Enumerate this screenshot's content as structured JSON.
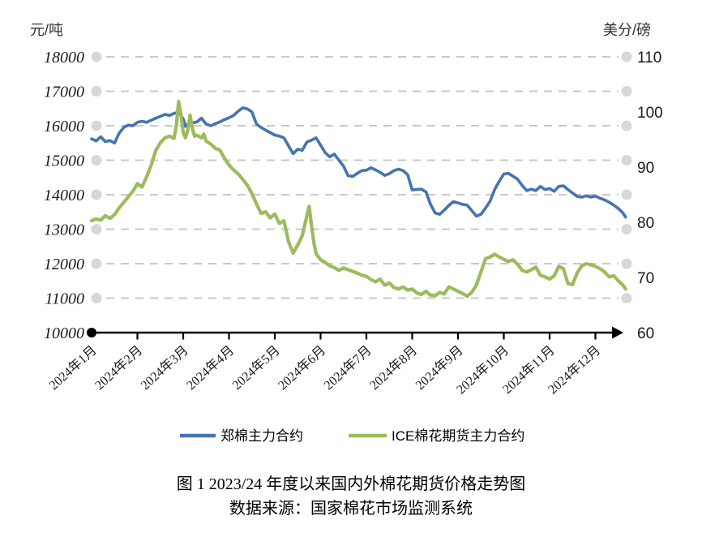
{
  "caption": {
    "line1": "图 1  2023/24 年度以来国内外棉花期货价格走势图",
    "line2": "数据来源：国家棉花市场监测系统"
  },
  "chart_data": {
    "type": "line",
    "title": "图 1 2023/24 年度以来国内外棉花期货价格走势图",
    "source": "数据来源：国家棉花市场监测系统",
    "grid": "dashed-horizontal",
    "legend_position": "bottom",
    "colors": {
      "grid": "#c9c9c9",
      "marker": "#d8d8d8",
      "axis": "#000000"
    },
    "left_axis": {
      "title": "元/吨",
      "min": 10000,
      "max": 18000,
      "tick_step": 1000,
      "tick_labels": [
        18000,
        17000,
        16000,
        15000,
        14000,
        13000,
        12000,
        11000,
        10000
      ]
    },
    "right_axis": {
      "title": "美分/磅",
      "min": 60,
      "max": 110,
      "tick_step": 10,
      "tick_labels": [
        110,
        100,
        90,
        80,
        70,
        60
      ]
    },
    "x_labels": [
      "2024年1月",
      "2024年2月",
      "2024年3月",
      "2024年4月",
      "2024年5月",
      "2024年6月",
      "2024年7月",
      "2024年8月",
      "2024年9月",
      "2024年10月",
      "2024年11月",
      "2024年12月"
    ],
    "series": [
      {
        "name": "郑棉主力合约",
        "axis": "left",
        "unit": "元/吨",
        "color": "#4574b0",
        "points": [
          [
            1.0,
            15620
          ],
          [
            1.1,
            15560
          ],
          [
            1.2,
            15680
          ],
          [
            1.3,
            15540
          ],
          [
            1.4,
            15570
          ],
          [
            1.5,
            15500
          ],
          [
            1.6,
            15780
          ],
          [
            1.7,
            15950
          ],
          [
            1.8,
            16020
          ],
          [
            1.9,
            16000
          ],
          [
            2.0,
            16100
          ],
          [
            2.1,
            16130
          ],
          [
            2.2,
            16100
          ],
          [
            2.3,
            16160
          ],
          [
            2.4,
            16220
          ],
          [
            2.5,
            16270
          ],
          [
            2.6,
            16330
          ],
          [
            2.7,
            16300
          ],
          [
            2.8,
            16360
          ],
          [
            2.9,
            16390
          ],
          [
            3.0,
            16200
          ],
          [
            3.05,
            15980
          ],
          [
            3.1,
            16050
          ],
          [
            3.2,
            16080
          ],
          [
            3.3,
            16110
          ],
          [
            3.4,
            16220
          ],
          [
            3.5,
            16050
          ],
          [
            3.6,
            16000
          ],
          [
            3.7,
            16060
          ],
          [
            3.8,
            16110
          ],
          [
            3.9,
            16180
          ],
          [
            4.0,
            16230
          ],
          [
            4.1,
            16300
          ],
          [
            4.2,
            16420
          ],
          [
            4.3,
            16520
          ],
          [
            4.4,
            16490
          ],
          [
            4.5,
            16400
          ],
          [
            4.6,
            16050
          ],
          [
            4.7,
            15950
          ],
          [
            4.8,
            15870
          ],
          [
            4.9,
            15800
          ],
          [
            5.0,
            15730
          ],
          [
            5.1,
            15700
          ],
          [
            5.2,
            15650
          ],
          [
            5.3,
            15420
          ],
          [
            5.4,
            15190
          ],
          [
            5.5,
            15320
          ],
          [
            5.6,
            15290
          ],
          [
            5.7,
            15530
          ],
          [
            5.8,
            15580
          ],
          [
            5.9,
            15650
          ],
          [
            6.0,
            15440
          ],
          [
            6.1,
            15220
          ],
          [
            6.2,
            15100
          ],
          [
            6.3,
            15180
          ],
          [
            6.4,
            15000
          ],
          [
            6.5,
            14830
          ],
          [
            6.6,
            14550
          ],
          [
            6.7,
            14530
          ],
          [
            6.8,
            14620
          ],
          [
            6.9,
            14700
          ],
          [
            7.0,
            14710
          ],
          [
            7.1,
            14780
          ],
          [
            7.2,
            14720
          ],
          [
            7.3,
            14650
          ],
          [
            7.4,
            14560
          ],
          [
            7.5,
            14610
          ],
          [
            7.6,
            14700
          ],
          [
            7.7,
            14740
          ],
          [
            7.8,
            14700
          ],
          [
            7.9,
            14580
          ],
          [
            8.0,
            14140
          ],
          [
            8.1,
            14150
          ],
          [
            8.2,
            14160
          ],
          [
            8.3,
            14080
          ],
          [
            8.4,
            13720
          ],
          [
            8.5,
            13470
          ],
          [
            8.6,
            13430
          ],
          [
            8.7,
            13550
          ],
          [
            8.8,
            13690
          ],
          [
            8.9,
            13800
          ],
          [
            9.0,
            13760
          ],
          [
            9.1,
            13720
          ],
          [
            9.2,
            13700
          ],
          [
            9.3,
            13540
          ],
          [
            9.4,
            13380
          ],
          [
            9.5,
            13430
          ],
          [
            9.6,
            13610
          ],
          [
            9.7,
            13810
          ],
          [
            9.8,
            14150
          ],
          [
            9.9,
            14390
          ],
          [
            10.0,
            14600
          ],
          [
            10.1,
            14620
          ],
          [
            10.2,
            14540
          ],
          [
            10.3,
            14450
          ],
          [
            10.4,
            14270
          ],
          [
            10.5,
            14120
          ],
          [
            10.6,
            14160
          ],
          [
            10.7,
            14120
          ],
          [
            10.8,
            14240
          ],
          [
            10.9,
            14150
          ],
          [
            11.0,
            14180
          ],
          [
            11.1,
            14100
          ],
          [
            11.2,
            14240
          ],
          [
            11.3,
            14260
          ],
          [
            11.4,
            14150
          ],
          [
            11.5,
            14050
          ],
          [
            11.6,
            13950
          ],
          [
            11.7,
            13930
          ],
          [
            11.8,
            13970
          ],
          [
            11.9,
            13930
          ],
          [
            12.0,
            13960
          ],
          [
            12.1,
            13900
          ],
          [
            12.2,
            13850
          ],
          [
            12.3,
            13780
          ],
          [
            12.4,
            13700
          ],
          [
            12.5,
            13600
          ],
          [
            12.6,
            13470
          ],
          [
            12.66,
            13350
          ]
        ]
      },
      {
        "name": "ICE棉花期货主力合约",
        "axis": "right",
        "unit": "美分/磅",
        "color": "#9cbb5c",
        "points": [
          [
            1.0,
            80.3
          ],
          [
            1.1,
            80.6
          ],
          [
            1.2,
            80.4
          ],
          [
            1.3,
            81.2
          ],
          [
            1.4,
            80.7
          ],
          [
            1.5,
            81.4
          ],
          [
            1.6,
            82.6
          ],
          [
            1.7,
            83.6
          ],
          [
            1.8,
            84.6
          ],
          [
            1.9,
            85.6
          ],
          [
            2.0,
            87.0
          ],
          [
            2.1,
            86.4
          ],
          [
            2.2,
            88.2
          ],
          [
            2.3,
            90.3
          ],
          [
            2.4,
            93.0
          ],
          [
            2.5,
            94.4
          ],
          [
            2.6,
            95.3
          ],
          [
            2.7,
            95.6
          ],
          [
            2.8,
            95.2
          ],
          [
            2.85,
            97.5
          ],
          [
            2.9,
            101.9
          ],
          [
            2.95,
            99.6
          ],
          [
            3.0,
            96.2
          ],
          [
            3.05,
            95.3
          ],
          [
            3.1,
            96.8
          ],
          [
            3.15,
            99.4
          ],
          [
            3.2,
            97.0
          ],
          [
            3.25,
            95.6
          ],
          [
            3.3,
            95.8
          ],
          [
            3.4,
            95.3
          ],
          [
            3.45,
            96.0
          ],
          [
            3.5,
            94.7
          ],
          [
            3.6,
            94.2
          ],
          [
            3.7,
            93.4
          ],
          [
            3.8,
            93.1
          ],
          [
            3.9,
            91.6
          ],
          [
            4.0,
            90.4
          ],
          [
            4.1,
            89.5
          ],
          [
            4.2,
            88.8
          ],
          [
            4.3,
            87.8
          ],
          [
            4.4,
            86.7
          ],
          [
            4.5,
            85.2
          ],
          [
            4.6,
            83.3
          ],
          [
            4.7,
            81.6
          ],
          [
            4.8,
            81.9
          ],
          [
            4.9,
            80.8
          ],
          [
            5.0,
            81.5
          ],
          [
            5.1,
            79.8
          ],
          [
            5.2,
            80.3
          ],
          [
            5.3,
            76.5
          ],
          [
            5.4,
            74.4
          ],
          [
            5.5,
            75.9
          ],
          [
            5.6,
            77.6
          ],
          [
            5.7,
            81.2
          ],
          [
            5.75,
            82.9
          ],
          [
            5.8,
            79.5
          ],
          [
            5.85,
            76.5
          ],
          [
            5.9,
            74.3
          ],
          [
            6.0,
            73.2
          ],
          [
            6.1,
            72.7
          ],
          [
            6.2,
            72.1
          ],
          [
            6.3,
            71.8
          ],
          [
            6.4,
            71.3
          ],
          [
            6.5,
            71.7
          ],
          [
            6.6,
            71.4
          ],
          [
            6.7,
            71.1
          ],
          [
            6.8,
            70.8
          ],
          [
            6.9,
            70.4
          ],
          [
            7.0,
            70.2
          ],
          [
            7.1,
            69.6
          ],
          [
            7.2,
            69.2
          ],
          [
            7.3,
            69.7
          ],
          [
            7.4,
            68.6
          ],
          [
            7.5,
            69.0
          ],
          [
            7.6,
            68.2
          ],
          [
            7.7,
            67.9
          ],
          [
            7.8,
            68.3
          ],
          [
            7.9,
            67.7
          ],
          [
            8.0,
            67.9
          ],
          [
            8.1,
            67.2
          ],
          [
            8.2,
            66.9
          ],
          [
            8.3,
            67.5
          ],
          [
            8.4,
            66.8
          ],
          [
            8.5,
            66.7
          ],
          [
            8.6,
            67.3
          ],
          [
            8.7,
            67.0
          ],
          [
            8.8,
            68.3
          ],
          [
            8.9,
            67.9
          ],
          [
            9.0,
            67.5
          ],
          [
            9.1,
            67.1
          ],
          [
            9.2,
            66.6
          ],
          [
            9.3,
            67.3
          ],
          [
            9.4,
            68.6
          ],
          [
            9.5,
            71.0
          ],
          [
            9.6,
            73.4
          ],
          [
            9.7,
            73.7
          ],
          [
            9.8,
            74.2
          ],
          [
            9.9,
            73.7
          ],
          [
            10.0,
            73.3
          ],
          [
            10.1,
            72.9
          ],
          [
            10.2,
            73.2
          ],
          [
            10.3,
            72.4
          ],
          [
            10.4,
            71.3
          ],
          [
            10.5,
            71.0
          ],
          [
            10.6,
            71.4
          ],
          [
            10.7,
            71.9
          ],
          [
            10.8,
            70.4
          ],
          [
            10.9,
            70.1
          ],
          [
            11.0,
            69.7
          ],
          [
            11.1,
            70.3
          ],
          [
            11.2,
            72.0
          ],
          [
            11.3,
            71.6
          ],
          [
            11.4,
            68.9
          ],
          [
            11.5,
            68.7
          ],
          [
            11.6,
            70.8
          ],
          [
            11.7,
            72.1
          ],
          [
            11.8,
            72.5
          ],
          [
            11.9,
            72.3
          ],
          [
            12.0,
            72.0
          ],
          [
            12.1,
            71.6
          ],
          [
            12.2,
            71.0
          ],
          [
            12.3,
            70.1
          ],
          [
            12.4,
            70.3
          ],
          [
            12.5,
            69.4
          ],
          [
            12.6,
            68.6
          ],
          [
            12.66,
            67.9
          ]
        ]
      }
    ]
  }
}
